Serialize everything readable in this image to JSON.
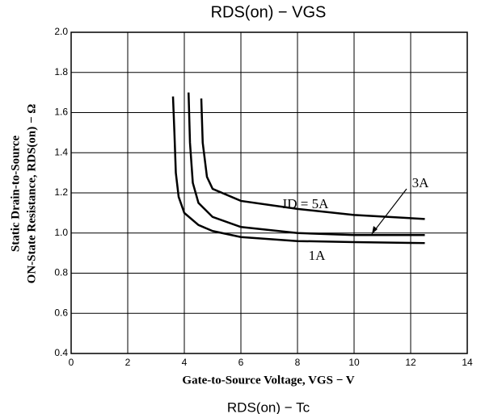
{
  "chart_data": {
    "type": "line",
    "title": "RDS(on) − VGS",
    "footer_text": "RDS(on) − Tc",
    "x_label": "Gate-to-Source Voltage, VGS − V",
    "y_label": [
      "Static Drain-to-Source",
      "ON-State Resistance, RDS(on) − Ω"
    ],
    "xlim": [
      0,
      14
    ],
    "xticks": [
      0,
      2,
      4,
      6,
      8,
      10,
      12,
      14
    ],
    "ylim": [
      0.4,
      2.0
    ],
    "yticks": [
      0.4,
      0.6,
      0.8,
      {
        "value": 1.0,
        "label": "1.0"
      },
      1.2,
      1.4,
      1.6,
      1.8,
      {
        "value": 2.0,
        "label": "2.0"
      }
    ],
    "grid": true,
    "series": [
      {
        "name": "1A",
        "color": "#000000",
        "x": [
          3.6,
          3.65,
          3.7,
          3.8,
          4.0,
          4.5,
          5,
          6,
          8,
          10,
          12.5
        ],
        "values": [
          1.68,
          1.5,
          1.3,
          1.18,
          1.1,
          1.04,
          1.01,
          0.98,
          0.96,
          0.955,
          0.95
        ]
      },
      {
        "name": "3A",
        "color": "#000000",
        "x": [
          4.15,
          4.2,
          4.3,
          4.5,
          5,
          6,
          8,
          10,
          12.5
        ],
        "values": [
          1.7,
          1.45,
          1.25,
          1.15,
          1.08,
          1.03,
          1.0,
          0.99,
          0.99
        ]
      },
      {
        "name": "ID = 5A",
        "color": "#000000",
        "x": [
          4.6,
          4.65,
          4.8,
          5,
          6,
          8,
          10,
          12.5
        ],
        "values": [
          1.67,
          1.45,
          1.28,
          1.22,
          1.16,
          1.12,
          1.09,
          1.07
        ]
      }
    ]
  }
}
